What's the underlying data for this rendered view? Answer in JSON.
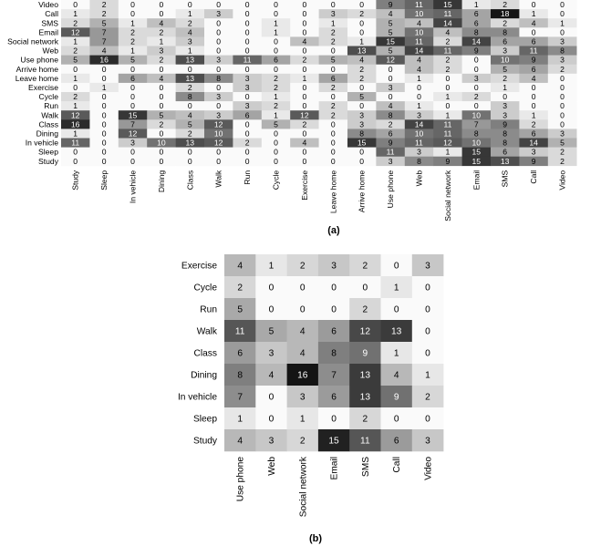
{
  "chart_data": [
    {
      "type": "heatmap",
      "panel_label": "(a)",
      "rows": [
        "Video",
        "Call",
        "SMS",
        "Email",
        "Social network",
        "Web",
        "Use phone",
        "Arrive home",
        "Leave home",
        "Exercise",
        "Cycle",
        "Run",
        "Walk",
        "Class",
        "Dining",
        "In vehicle",
        "Sleep",
        "Study"
      ],
      "columns": [
        "Study",
        "Sleep",
        "In vehicle",
        "Dining",
        "Class",
        "Walk",
        "Run",
        "Cycle",
        "Exercise",
        "Leave home",
        "Arrive home",
        "Use phone",
        "Web",
        "Social network",
        "Email",
        "SMS",
        "Call",
        "Video"
      ],
      "values": [
        [
          0,
          2,
          0,
          0,
          0,
          0,
          0,
          0,
          0,
          0,
          0,
          9,
          11,
          15,
          1,
          2,
          0,
          0
        ],
        [
          1,
          2,
          0,
          0,
          1,
          3,
          0,
          0,
          0,
          3,
          2,
          4,
          10,
          11,
          6,
          18,
          1,
          0
        ],
        [
          2,
          5,
          1,
          4,
          2,
          0,
          0,
          1,
          0,
          1,
          0,
          5,
          4,
          14,
          6,
          2,
          4,
          1
        ],
        [
          12,
          7,
          2,
          2,
          4,
          0,
          0,
          1,
          0,
          2,
          0,
          5,
          10,
          4,
          8,
          8,
          0,
          0
        ],
        [
          1,
          7,
          2,
          1,
          3,
          0,
          0,
          0,
          4,
          2,
          1,
          15,
          11,
          2,
          14,
          6,
          6,
          3
        ],
        [
          2,
          4,
          1,
          3,
          1,
          0,
          0,
          0,
          0,
          0,
          13,
          5,
          14,
          11,
          9,
          3,
          11,
          8
        ],
        [
          5,
          16,
          5,
          2,
          13,
          3,
          11,
          6,
          2,
          5,
          4,
          12,
          4,
          2,
          0,
          10,
          9,
          3
        ],
        [
          0,
          0,
          0,
          0,
          0,
          0,
          0,
          0,
          0,
          0,
          2,
          0,
          4,
          2,
          0,
          5,
          6,
          2
        ],
        [
          1,
          0,
          6,
          4,
          13,
          8,
          3,
          2,
          1,
          6,
          2,
          0,
          1,
          0,
          3,
          2,
          4,
          0
        ],
        [
          0,
          1,
          0,
          0,
          2,
          0,
          3,
          2,
          0,
          2,
          0,
          3,
          0,
          0,
          0,
          1,
          0,
          0
        ],
        [
          2,
          0,
          0,
          0,
          8,
          3,
          0,
          1,
          0,
          0,
          5,
          0,
          0,
          1,
          2,
          0,
          0,
          0
        ],
        [
          1,
          0,
          0,
          0,
          0,
          0,
          3,
          2,
          0,
          2,
          0,
          4,
          1,
          0,
          0,
          3,
          0,
          0
        ],
        [
          12,
          0,
          15,
          5,
          4,
          3,
          6,
          1,
          12,
          2,
          3,
          8,
          3,
          1,
          10,
          3,
          1,
          0
        ],
        [
          16,
          0,
          7,
          2,
          5,
          12,
          0,
          5,
          2,
          0,
          3,
          2,
          14,
          11,
          7,
          9,
          2,
          0
        ],
        [
          1,
          0,
          12,
          0,
          2,
          10,
          0,
          0,
          0,
          0,
          8,
          6,
          10,
          11,
          8,
          8,
          6,
          3
        ],
        [
          11,
          0,
          3,
          10,
          13,
          12,
          2,
          0,
          4,
          0,
          15,
          9,
          11,
          12,
          10,
          8,
          14,
          5
        ],
        [
          0,
          0,
          0,
          0,
          0,
          0,
          0,
          0,
          0,
          0,
          0,
          11,
          3,
          1,
          15,
          6,
          3,
          2
        ],
        [
          0,
          0,
          0,
          0,
          0,
          0,
          0,
          0,
          0,
          0,
          0,
          3,
          8,
          9,
          15,
          13,
          9,
          2
        ]
      ],
      "color_scale": "grayscale, darker = higher count",
      "title": "",
      "xlabel": "",
      "ylabel": ""
    },
    {
      "type": "heatmap",
      "panel_label": "(b)",
      "rows": [
        "Exercise",
        "Cycle",
        "Run",
        "Walk",
        "Class",
        "Dining",
        "In vehicle",
        "Sleep",
        "Study"
      ],
      "columns": [
        "Use phone",
        "Web",
        "Social network",
        "Email",
        "SMS",
        "Call",
        "Video"
      ],
      "values": [
        [
          4,
          1,
          2,
          3,
          2,
          0,
          3
        ],
        [
          2,
          0,
          0,
          0,
          0,
          1,
          0
        ],
        [
          5,
          0,
          0,
          0,
          2,
          0,
          0
        ],
        [
          11,
          5,
          4,
          6,
          12,
          13,
          0
        ],
        [
          6,
          3,
          4,
          8,
          9,
          1,
          0
        ],
        [
          8,
          4,
          16,
          7,
          13,
          4,
          1
        ],
        [
          7,
          0,
          3,
          6,
          13,
          9,
          2
        ],
        [
          1,
          0,
          1,
          0,
          2,
          0,
          0
        ],
        [
          4,
          3,
          2,
          15,
          11,
          6,
          3
        ]
      ],
      "color_scale": "grayscale, darker = higher count",
      "title": "",
      "xlabel": "",
      "ylabel": ""
    }
  ]
}
